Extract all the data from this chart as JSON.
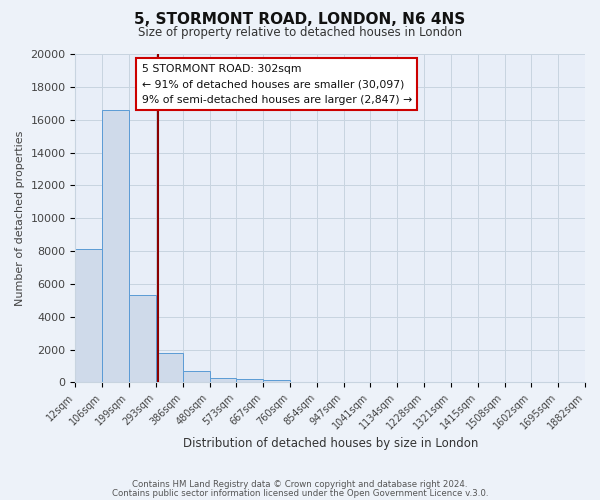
{
  "title": "5, STORMONT ROAD, LONDON, N6 4NS",
  "subtitle": "Size of property relative to detached houses in London",
  "xlabel": "Distribution of detached houses by size in London",
  "ylabel": "Number of detached properties",
  "bar_values": [
    8100,
    16600,
    5300,
    1800,
    700,
    300,
    200,
    150,
    0,
    0,
    0,
    0,
    0,
    0,
    0,
    0,
    0,
    0,
    0
  ],
  "categories": [
    "12sqm",
    "106sqm",
    "199sqm",
    "293sqm",
    "386sqm",
    "480sqm",
    "573sqm",
    "667sqm",
    "760sqm",
    "854sqm",
    "947sqm",
    "1041sqm",
    "1134sqm",
    "1228sqm",
    "1321sqm",
    "1415sqm",
    "1508sqm",
    "1602sqm",
    "1695sqm",
    "1882sqm"
  ],
  "bar_color": "#cfdaea",
  "bar_edge_color": "#5b9bd5",
  "property_line_color": "#8b0000",
  "annotation_title": "5 STORMONT ROAD: 302sqm",
  "annotation_line1": "← 91% of detached houses are smaller (30,097)",
  "annotation_line2": "9% of semi-detached houses are larger (2,847) →",
  "annotation_box_color": "#ffffff",
  "annotation_box_edge_color": "#cc0000",
  "ylim": [
    0,
    20000
  ],
  "yticks": [
    0,
    2000,
    4000,
    6000,
    8000,
    10000,
    12000,
    14000,
    16000,
    18000,
    20000
  ],
  "footer1": "Contains HM Land Registry data © Crown copyright and database right 2024.",
  "footer2": "Contains public sector information licensed under the Open Government Licence v.3.0.",
  "bg_color": "#edf2f9",
  "grid_color": "#c8d4e0",
  "plot_bg_color": "#e8eef8"
}
